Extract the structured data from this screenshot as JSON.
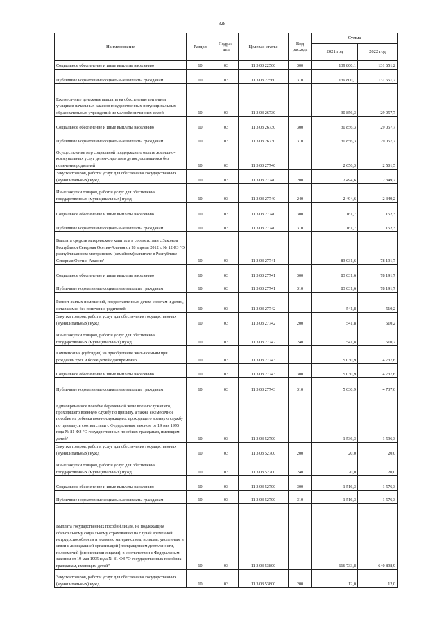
{
  "page_number": "328",
  "header": {
    "name": "Наименование",
    "section": "Раздел",
    "subsection": "Подраз-дел",
    "target": "Целевая статья",
    "kind": "Вид расхода",
    "sum": "Сумма",
    "y2021": "2021 год",
    "y2022": "2022 год"
  },
  "rows": [
    {
      "name": "Социальное обеспечение и иные выплаты населению",
      "razdel": "10",
      "podrazdel": "03",
      "cs": "11 3 03 22560",
      "vr": "300",
      "y2021": "139 800,1",
      "y2022": "131 651,2"
    },
    {
      "name": "Публичные нормативные социальные выплаты гражданам",
      "razdel": "10",
      "podrazdel": "03",
      "cs": "11 3 03 22560",
      "vr": "310",
      "y2021": "139 800,1",
      "y2022": "131 651,2"
    },
    {
      "name": "Ежемесячные денежные выплаты на обеспечение питанием учащихся начальных классов государственных и муниципальных образовательных учреждений из малообеспеченных семей",
      "razdel": "10",
      "podrazdel": "03",
      "cs": "11 3 03 26730",
      "vr": "",
      "y2021": "30 856,3",
      "y2022": "29 057,7"
    },
    {
      "name": "Социальное обеспечение и иные выплаты населению",
      "razdel": "10",
      "podrazdel": "03",
      "cs": "11 3 03 26730",
      "vr": "300",
      "y2021": "30 856,3",
      "y2022": "29 057,7"
    },
    {
      "name": "Публичные нормативные социальные выплаты гражданам",
      "razdel": "10",
      "podrazdel": "03",
      "cs": "11 3 03 26730",
      "vr": "310",
      "y2021": "30 856,3",
      "y2022": "29 057,7"
    },
    {
      "name": "Осуществление мер социальной поддержки по оплате жилищно-коммунальных услуг детям-сиротам и детям, оставшимся без попечения родителей",
      "razdel": "10",
      "podrazdel": "03",
      "cs": "11 3 03 27740",
      "vr": "",
      "y2021": "2 656,3",
      "y2022": "2 501,5"
    },
    {
      "name": "Закупка товаров, работ и услуг для обеспечения государственных (муниципальных) нужд",
      "razdel": "10",
      "podrazdel": "03",
      "cs": "11 3 03 27740",
      "vr": "200",
      "y2021": "2 494,6",
      "y2022": "2 349,2"
    },
    {
      "name": "Иные закупки товаров, работ и услуг для обеспечения государственных (муниципальных) нужд",
      "razdel": "10",
      "podrazdel": "03",
      "cs": "11 3 03 27740",
      "vr": "240",
      "y2021": "2 494,6",
      "y2022": "2 349,2"
    },
    {
      "name": "Социальное обеспечение и иные выплаты населению",
      "razdel": "10",
      "podrazdel": "03",
      "cs": "11 3 03 27740",
      "vr": "300",
      "y2021": "161,7",
      "y2022": "152,3"
    },
    {
      "name": "Публичные нормативные социальные выплаты гражданам",
      "razdel": "10",
      "podrazdel": "03",
      "cs": "11 3 03 27740",
      "vr": "310",
      "y2021": "161,7",
      "y2022": "152,3"
    },
    {
      "name": "Выплата средств материнского капитала в соответствии с Законом Республики Северная Осетия-Алания от 18 апреля 2012 г. № 12-РЗ \"О республиканском материнском (семейном) капитале в Республике Северная Осетия-Алания\"",
      "razdel": "10",
      "podrazdel": "03",
      "cs": "11 3 03 27741",
      "vr": "",
      "y2021": "83 031,6",
      "y2022": "78 191,7"
    },
    {
      "name": "Социальное обеспечение и иные выплаты населению",
      "razdel": "10",
      "podrazdel": "03",
      "cs": "11 3 03 27741",
      "vr": "300",
      "y2021": "83 031,6",
      "y2022": "78 191,7"
    },
    {
      "name": "Публичные нормативные социальные выплаты гражданам",
      "razdel": "10",
      "podrazdel": "03",
      "cs": "11 3 03 27741",
      "vr": "310",
      "y2021": "83 031,6",
      "y2022": "78 191,7"
    },
    {
      "name": "Ремонт жилых помещений, предоставленных детям-сиротам и детям, оставшимся без попечения родителей",
      "razdel": "10",
      "podrazdel": "03",
      "cs": "11 3 03 27742",
      "vr": "",
      "y2021": "541,8",
      "y2022": "510,2"
    },
    {
      "name": "Закупка товаров, работ и услуг для обеспечения государственных (муниципальных) нужд",
      "razdel": "10",
      "podrazdel": "03",
      "cs": "11 3 03 27742",
      "vr": "200",
      "y2021": "541,8",
      "y2022": "510,2"
    },
    {
      "name": "Иные закупки товаров, работ и услуг для обеспечения государственных (муниципальных) нужд",
      "razdel": "10",
      "podrazdel": "03",
      "cs": "11 3 03 27742",
      "vr": "240",
      "y2021": "541,8",
      "y2022": "510,2"
    },
    {
      "name": "Компенсация (субсидия) на приобретение жилья семьям при рождении трех и более детей одновременно",
      "razdel": "10",
      "podrazdel": "03",
      "cs": "11 3 03 27743",
      "vr": "",
      "y2021": "5 030,9",
      "y2022": "4 737,6"
    },
    {
      "name": "Социальное обеспечение и иные выплаты населению",
      "razdel": "10",
      "podrazdel": "03",
      "cs": "11 3 03 27743",
      "vr": "300",
      "y2021": "5 030,9",
      "y2022": "4 737,6"
    },
    {
      "name": "Публичные нормативные социальные выплаты гражданам",
      "razdel": "10",
      "podrazdel": "03",
      "cs": "11 3 03 27743",
      "vr": "310",
      "y2021": "5 030,9",
      "y2022": "4 737,6"
    },
    {
      "name": "Единовременное пособие беременной жене военнослужащего, проходящего военную службу по призыву, а также ежемесячное пособие на ребенка военнослужащего, проходящего военную службу по призыву, в соответствии с Федеральным законом от 19 мая 1995 года № 81-ФЗ \"О государственных пособиях гражданам, имеющим детей\"",
      "razdel": "10",
      "podrazdel": "03",
      "cs": "11 3 03 52700",
      "vr": "",
      "y2021": "1 536,3",
      "y2022": "1 596,3"
    },
    {
      "name": "Закупка товаров, работ и услуг для обеспечения государственных (муниципальных) нужд",
      "razdel": "10",
      "podrazdel": "03",
      "cs": "11 3 03 52700",
      "vr": "200",
      "y2021": "20,0",
      "y2022": "20,0"
    },
    {
      "name": "Иные закупки товаров, работ и услуг для обеспечения государственных (муниципальных) нужд",
      "razdel": "10",
      "podrazdel": "03",
      "cs": "11 3 03 52700",
      "vr": "240",
      "y2021": "20,0",
      "y2022": "20,0"
    },
    {
      "name": "Социальное обеспечение и иные выплаты населению",
      "razdel": "10",
      "podrazdel": "03",
      "cs": "11 3 03 52700",
      "vr": "300",
      "y2021": "1 516,3",
      "y2022": "1 576,3"
    },
    {
      "name": "Публичные нормативные социальные выплаты гражданам",
      "razdel": "10",
      "podrazdel": "03",
      "cs": "11 3 03 52700",
      "vr": "310",
      "y2021": "1 516,3",
      "y2022": "1 576,3"
    },
    {
      "name": "Выплата государственных пособий лицам, не подлежащим обязательному социальному страхованию на случай временной нетрудоспособности и в связи с материнством, и лицам, уволенным в связи с ликвидацией организаций (прекращением деятельности, полномочий физическими лицами), в соответствии с Федеральным законом от 19 мая 1995 года № 81-ФЗ \"О государственных пособиях гражданам, имеющим детей\"",
      "razdel": "10",
      "podrazdel": "03",
      "cs": "11 3 03 53800",
      "vr": "",
      "y2021": "616 733,8",
      "y2022": "640 898,9"
    },
    {
      "name": "Закупка товаров, работ и услуг для обеспечения государственных (муниципальных) нужд",
      "razdel": "10",
      "podrazdel": "03",
      "cs": "11 3 03 53800",
      "vr": "200",
      "y2021": "12,0",
      "y2022": "12,0"
    }
  ]
}
